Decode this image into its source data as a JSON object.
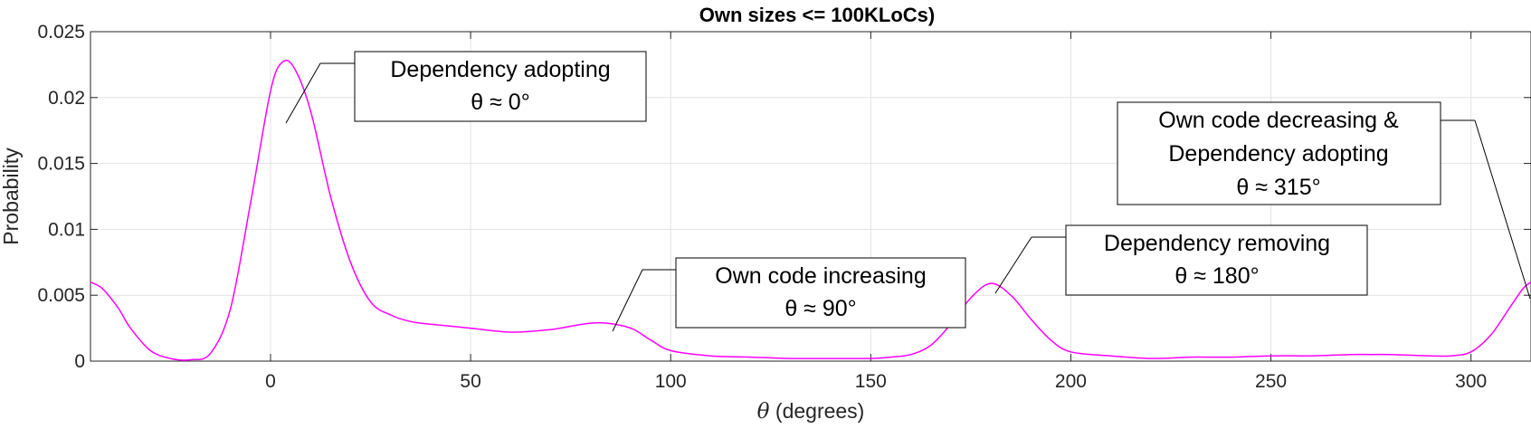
{
  "chart_data": {
    "type": "line",
    "title": "Own sizes <= 100KLoCs)",
    "xlabel_symbol": "θ",
    "xlabel_text": " (degrees)",
    "ylabel": "Probability",
    "xlim": [
      -45,
      315
    ],
    "ylim": [
      0,
      0.025
    ],
    "x_ticks": [
      0,
      50,
      100,
      150,
      200,
      250,
      300
    ],
    "y_ticks": [
      0,
      0.005,
      0.01,
      0.015,
      0.02,
      0.025
    ],
    "y_tick_labels": [
      "0",
      "0.005",
      "0.01",
      "0.015",
      "0.02",
      "0.025"
    ],
    "grid": true,
    "line_color": "#ff00ff",
    "series": [
      {
        "x": [
          -45,
          -42,
          -38,
          -35,
          -30,
          -25,
          -20,
          -15,
          -10,
          -5,
          0,
          3,
          6,
          10,
          15,
          20,
          25,
          30,
          35,
          40,
          50,
          60,
          70,
          78,
          83,
          90,
          95,
          100,
          110,
          120,
          130,
          140,
          150,
          155,
          160,
          165,
          170,
          175,
          180,
          185,
          190,
          195,
          200,
          210,
          220,
          230,
          240,
          250,
          260,
          270,
          275,
          280,
          290,
          295,
          300,
          305,
          310,
          313,
          315
        ],
        "y": [
          0.006,
          0.0055,
          0.004,
          0.0025,
          0.0008,
          0.0002,
          0.0001,
          0.0006,
          0.004,
          0.012,
          0.0205,
          0.0227,
          0.0222,
          0.019,
          0.0125,
          0.0075,
          0.0045,
          0.0035,
          0.003,
          0.0028,
          0.0025,
          0.0022,
          0.0024,
          0.0028,
          0.0029,
          0.0025,
          0.0016,
          0.0008,
          0.0004,
          0.0003,
          0.0002,
          0.0002,
          0.0002,
          0.0003,
          0.0005,
          0.0012,
          0.0028,
          0.0048,
          0.0059,
          0.005,
          0.0032,
          0.0016,
          0.0007,
          0.0004,
          0.0002,
          0.0003,
          0.0003,
          0.0004,
          0.0004,
          0.0005,
          0.0005,
          0.0005,
          0.0004,
          0.0004,
          0.0007,
          0.002,
          0.0042,
          0.0055,
          0.006
        ]
      }
    ],
    "annotations": [
      {
        "lines": [
          "Dependency adopting",
          "θ ≈ 0°"
        ],
        "point": [
          3,
          0.018
        ]
      },
      {
        "lines": [
          "Own code increasing",
          "θ ≈ 90°"
        ],
        "point": [
          83,
          0.002
        ]
      },
      {
        "lines": [
          "Dependency removing",
          "θ ≈ 180°"
        ],
        "point": [
          180,
          0.0048
        ]
      },
      {
        "lines": [
          "Own code decreasing &",
          "Dependency adopting",
          "θ ≈ 315°"
        ],
        "point": [
          315,
          0.0045
        ]
      }
    ]
  }
}
